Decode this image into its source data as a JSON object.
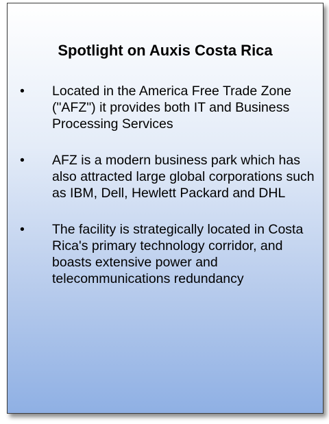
{
  "title": "Spotlight on Auxis Costa Rica",
  "bullet_symbol": "•",
  "bullets": [
    "Located in the America Free Trade Zone (\"AFZ\") it provides both IT and Business Processing Services",
    "AFZ is a modern business park which has also attracted large global corporations such as IBM, Dell, Hewlett Packard and DHL",
    "The facility is strategically located in Costa Rica's primary technology corridor, and boasts extensive power and telecommunications redundancy"
  ],
  "colors": {
    "border": "#3a3a3a",
    "gradient_top": "#ffffff",
    "gradient_bottom": "#8fb0e4",
    "text": "#000000"
  }
}
